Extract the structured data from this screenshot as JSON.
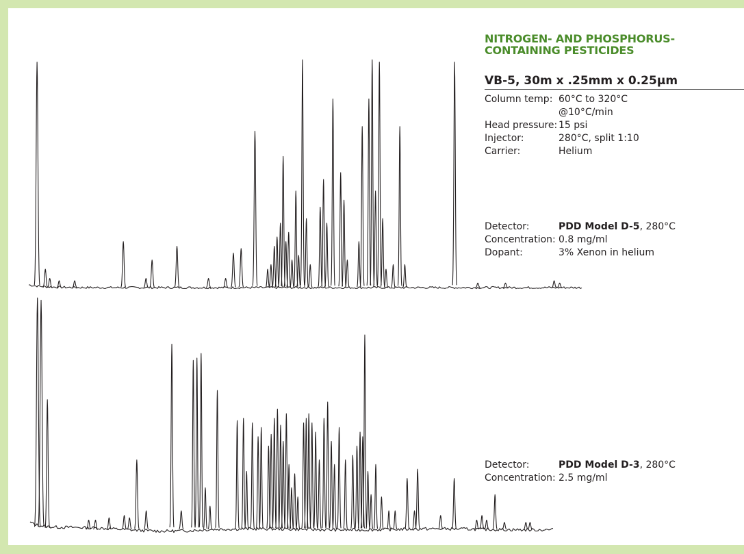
{
  "title_lines": [
    "NITROGEN- AND PHOSPHORUS-",
    "CONTAINING PESTICIDES"
  ],
  "column": "VB-5, 30m x .25mm x 0.25µm",
  "conditions": [
    {
      "label": "Column temp:",
      "value_lines": [
        "60°C to 320°C",
        "@10°C/min"
      ]
    },
    {
      "label": "Head pressure:",
      "value_lines": [
        "15 psi"
      ]
    },
    {
      "label": "Injector:",
      "value_lines": [
        "280°C, split 1:10"
      ]
    },
    {
      "label": "Carrier:",
      "value_lines": [
        "Helium"
      ]
    }
  ],
  "detector_top": {
    "detector_label": "Detector:",
    "detector_model": "PDD Model D-5",
    "detector_temp": ", 280°C",
    "concentration_label": "Concentration:",
    "concentration_value": "0.8 mg/ml",
    "dopant_label": "Dopant:",
    "dopant_value": "3% Xenon in helium"
  },
  "detector_bottom": {
    "detector_label": "Detector:",
    "detector_model": "PDD Model D-3",
    "detector_temp": ", 280°C",
    "concentration_label": "Concentration:",
    "concentration_value": "2.5 mg/ml"
  },
  "colors": {
    "background_border": "#d3e7b0",
    "title": "#4a8c2a",
    "trace": "#231f20"
  },
  "chart_data": [
    {
      "type": "line",
      "title": "",
      "xlabel": "",
      "ylabel": "",
      "xlim": [
        0,
        100
      ],
      "ylim": [
        0,
        100
      ],
      "grid": false,
      "axes_visible": false,
      "peaks": [
        {
          "x": 1.5,
          "h": 98,
          "w": 0.35
        },
        {
          "x": 3.0,
          "h": 8,
          "w": 0.3
        },
        {
          "x": 3.8,
          "h": 4,
          "w": 0.3
        },
        {
          "x": 5.5,
          "h": 3,
          "w": 0.3
        },
        {
          "x": 8.3,
          "h": 3,
          "w": 0.3
        },
        {
          "x": 17.1,
          "h": 20,
          "w": 0.3
        },
        {
          "x": 21.2,
          "h": 4,
          "w": 0.3
        },
        {
          "x": 22.3,
          "h": 12,
          "w": 0.3
        },
        {
          "x": 26.8,
          "h": 18,
          "w": 0.3
        },
        {
          "x": 32.5,
          "h": 4,
          "w": 0.3
        },
        {
          "x": 35.6,
          "h": 4,
          "w": 0.3
        },
        {
          "x": 37.0,
          "h": 15,
          "w": 0.3
        },
        {
          "x": 38.4,
          "h": 17,
          "w": 0.3
        },
        {
          "x": 40.9,
          "h": 68,
          "w": 0.3
        },
        {
          "x": 43.2,
          "h": 8,
          "w": 0.25
        },
        {
          "x": 43.8,
          "h": 10,
          "w": 0.25
        },
        {
          "x": 44.4,
          "h": 18,
          "w": 0.25
        },
        {
          "x": 44.9,
          "h": 22,
          "w": 0.25
        },
        {
          "x": 45.5,
          "h": 28,
          "w": 0.25
        },
        {
          "x": 46.0,
          "h": 57,
          "w": 0.25
        },
        {
          "x": 46.5,
          "h": 20,
          "w": 0.25
        },
        {
          "x": 47.0,
          "h": 24,
          "w": 0.25
        },
        {
          "x": 47.6,
          "h": 12,
          "w": 0.25
        },
        {
          "x": 48.3,
          "h": 42,
          "w": 0.25
        },
        {
          "x": 48.8,
          "h": 14,
          "w": 0.25
        },
        {
          "x": 49.5,
          "h": 99,
          "w": 0.25
        },
        {
          "x": 50.2,
          "h": 30,
          "w": 0.25
        },
        {
          "x": 50.9,
          "h": 10,
          "w": 0.25
        },
        {
          "x": 52.7,
          "h": 35,
          "w": 0.25
        },
        {
          "x": 53.3,
          "h": 47,
          "w": 0.25
        },
        {
          "x": 53.9,
          "h": 28,
          "w": 0.25
        },
        {
          "x": 55.0,
          "h": 82,
          "w": 0.25
        },
        {
          "x": 56.4,
          "h": 50,
          "w": 0.25
        },
        {
          "x": 57.0,
          "h": 38,
          "w": 0.25
        },
        {
          "x": 57.6,
          "h": 12,
          "w": 0.25
        },
        {
          "x": 59.7,
          "h": 20,
          "w": 0.25
        },
        {
          "x": 60.3,
          "h": 70,
          "w": 0.25
        },
        {
          "x": 61.5,
          "h": 82,
          "w": 0.25
        },
        {
          "x": 62.1,
          "h": 99,
          "w": 0.25
        },
        {
          "x": 62.7,
          "h": 42,
          "w": 0.25
        },
        {
          "x": 63.4,
          "h": 98,
          "w": 0.25
        },
        {
          "x": 64.0,
          "h": 30,
          "w": 0.25
        },
        {
          "x": 64.6,
          "h": 8,
          "w": 0.25
        },
        {
          "x": 65.9,
          "h": 10,
          "w": 0.25
        },
        {
          "x": 67.1,
          "h": 70,
          "w": 0.25
        },
        {
          "x": 68.0,
          "h": 10,
          "w": 0.25
        },
        {
          "x": 77.0,
          "h": 98,
          "w": 0.28
        },
        {
          "x": 81.2,
          "h": 2,
          "w": 0.3
        },
        {
          "x": 86.2,
          "h": 2,
          "w": 0.3
        },
        {
          "x": 95.0,
          "h": 3,
          "w": 0.3
        },
        {
          "x": 96.0,
          "h": 2,
          "w": 0.3
        }
      ]
    },
    {
      "type": "line",
      "title": "",
      "xlabel": "",
      "ylabel": "",
      "xlim": [
        0,
        100
      ],
      "ylim": [
        0,
        100
      ],
      "grid": false,
      "axes_visible": false,
      "peaks": [
        {
          "x": 1.4,
          "h": 100,
          "w": 0.4
        },
        {
          "x": 2.1,
          "h": 99,
          "w": 0.4
        },
        {
          "x": 3.3,
          "h": 56,
          "w": 0.3
        },
        {
          "x": 11.2,
          "h": 4,
          "w": 0.3
        },
        {
          "x": 12.5,
          "h": 4,
          "w": 0.3
        },
        {
          "x": 15.1,
          "h": 5,
          "w": 0.3
        },
        {
          "x": 18.0,
          "h": 6,
          "w": 0.3
        },
        {
          "x": 19.0,
          "h": 5,
          "w": 0.3
        },
        {
          "x": 20.4,
          "h": 30,
          "w": 0.3
        },
        {
          "x": 22.2,
          "h": 8,
          "w": 0.3
        },
        {
          "x": 27.1,
          "h": 80,
          "w": 0.28
        },
        {
          "x": 28.9,
          "h": 8,
          "w": 0.3
        },
        {
          "x": 31.2,
          "h": 73,
          "w": 0.25
        },
        {
          "x": 31.9,
          "h": 74,
          "w": 0.25
        },
        {
          "x": 32.7,
          "h": 76,
          "w": 0.25
        },
        {
          "x": 33.5,
          "h": 18,
          "w": 0.25
        },
        {
          "x": 34.4,
          "h": 10,
          "w": 0.25
        },
        {
          "x": 35.8,
          "h": 60,
          "w": 0.25
        },
        {
          "x": 39.6,
          "h": 47,
          "w": 0.25
        },
        {
          "x": 40.8,
          "h": 48,
          "w": 0.25
        },
        {
          "x": 41.4,
          "h": 25,
          "w": 0.25
        },
        {
          "x": 42.5,
          "h": 46,
          "w": 0.25
        },
        {
          "x": 43.6,
          "h": 40,
          "w": 0.25
        },
        {
          "x": 44.2,
          "h": 44,
          "w": 0.25
        },
        {
          "x": 45.6,
          "h": 36,
          "w": 0.25
        },
        {
          "x": 46.1,
          "h": 41,
          "w": 0.25
        },
        {
          "x": 46.7,
          "h": 48,
          "w": 0.25
        },
        {
          "x": 47.3,
          "h": 52,
          "w": 0.25
        },
        {
          "x": 47.9,
          "h": 45,
          "w": 0.25
        },
        {
          "x": 48.4,
          "h": 38,
          "w": 0.25
        },
        {
          "x": 49.0,
          "h": 50,
          "w": 0.25
        },
        {
          "x": 49.5,
          "h": 28,
          "w": 0.25
        },
        {
          "x": 50.0,
          "h": 18,
          "w": 0.25
        },
        {
          "x": 50.6,
          "h": 24,
          "w": 0.25
        },
        {
          "x": 51.2,
          "h": 14,
          "w": 0.25
        },
        {
          "x": 52.3,
          "h": 46,
          "w": 0.25
        },
        {
          "x": 52.8,
          "h": 48,
          "w": 0.25
        },
        {
          "x": 53.3,
          "h": 50,
          "w": 0.25
        },
        {
          "x": 53.9,
          "h": 46,
          "w": 0.25
        },
        {
          "x": 54.6,
          "h": 42,
          "w": 0.25
        },
        {
          "x": 55.3,
          "h": 30,
          "w": 0.25
        },
        {
          "x": 56.2,
          "h": 48,
          "w": 0.25
        },
        {
          "x": 56.9,
          "h": 55,
          "w": 0.25
        },
        {
          "x": 57.6,
          "h": 38,
          "w": 0.25
        },
        {
          "x": 58.2,
          "h": 28,
          "w": 0.25
        },
        {
          "x": 59.1,
          "h": 44,
          "w": 0.25
        },
        {
          "x": 60.3,
          "h": 30,
          "w": 0.25
        },
        {
          "x": 61.7,
          "h": 32,
          "w": 0.25
        },
        {
          "x": 62.5,
          "h": 36,
          "w": 0.25
        },
        {
          "x": 63.1,
          "h": 42,
          "w": 0.25
        },
        {
          "x": 63.6,
          "h": 40,
          "w": 0.25
        },
        {
          "x": 64.0,
          "h": 84,
          "w": 0.25
        },
        {
          "x": 64.6,
          "h": 25,
          "w": 0.25
        },
        {
          "x": 65.2,
          "h": 15,
          "w": 0.25
        },
        {
          "x": 66.1,
          "h": 28,
          "w": 0.25
        },
        {
          "x": 67.2,
          "h": 14,
          "w": 0.25
        },
        {
          "x": 68.6,
          "h": 8,
          "w": 0.25
        },
        {
          "x": 69.8,
          "h": 8,
          "w": 0.25
        },
        {
          "x": 72.1,
          "h": 22,
          "w": 0.28
        },
        {
          "x": 73.5,
          "h": 8,
          "w": 0.28
        },
        {
          "x": 74.1,
          "h": 26,
          "w": 0.28
        },
        {
          "x": 78.5,
          "h": 6,
          "w": 0.3
        },
        {
          "x": 81.1,
          "h": 22,
          "w": 0.28
        },
        {
          "x": 85.4,
          "h": 4,
          "w": 0.3
        },
        {
          "x": 86.4,
          "h": 6,
          "w": 0.3
        },
        {
          "x": 87.3,
          "h": 4,
          "w": 0.3
        },
        {
          "x": 88.9,
          "h": 15,
          "w": 0.28
        },
        {
          "x": 90.7,
          "h": 3,
          "w": 0.3
        },
        {
          "x": 94.8,
          "h": 3,
          "w": 0.3
        },
        {
          "x": 95.6,
          "h": 3,
          "w": 0.3
        }
      ]
    }
  ]
}
